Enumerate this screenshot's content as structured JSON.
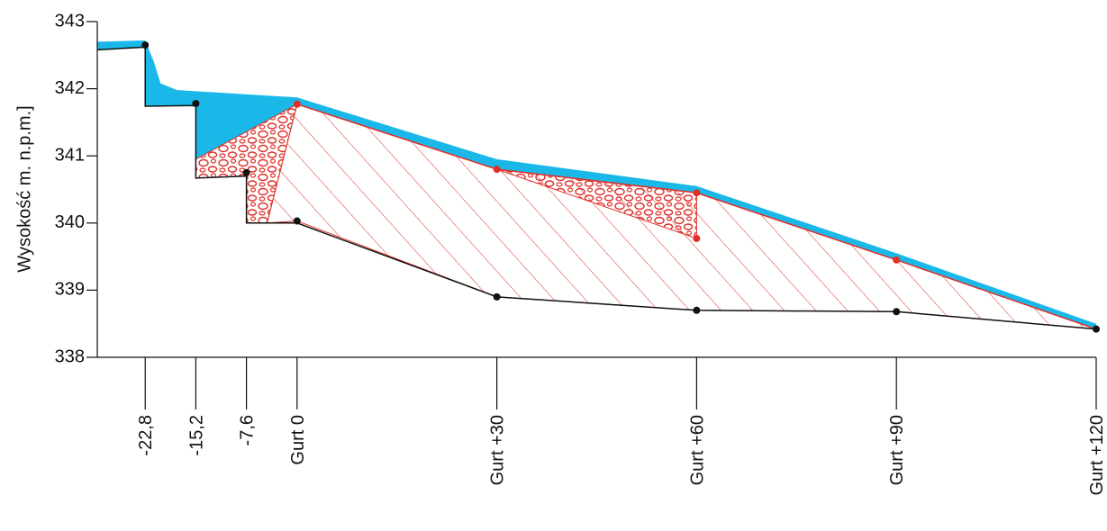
{
  "chart_data": {
    "type": "profile",
    "y_label": "Wysokość m. n.p.m.]",
    "xlim": [
      -30,
      120
    ],
    "ylim": [
      338,
      343
    ],
    "yticks": [
      338,
      339,
      340,
      341,
      342,
      343
    ],
    "xticks": [
      {
        "value": -22.8,
        "label": "-22,8"
      },
      {
        "value": -15.2,
        "label": "-15,2"
      },
      {
        "value": -7.6,
        "label": "-7,6"
      },
      {
        "value": 0,
        "label": "Gurt 0"
      },
      {
        "value": 30,
        "label": "Gurt +30"
      },
      {
        "value": 60,
        "label": "Gurt +60"
      },
      {
        "value": 90,
        "label": "Gurt +90"
      },
      {
        "value": 120,
        "label": "Gurt +120"
      }
    ],
    "water": {
      "color": "#1ab8e8",
      "x": [
        -30,
        -22.8,
        -21.5,
        -20.5,
        -18,
        0,
        30,
        60,
        90,
        120,
        120,
        90,
        60,
        30,
        0,
        -15.2,
        -15.2,
        -22.8,
        -22.8,
        -30
      ],
      "y": [
        342.7,
        342.72,
        342.4,
        342.08,
        341.98,
        341.87,
        340.95,
        340.55,
        339.55,
        338.5,
        338.42,
        339.45,
        340.45,
        340.8,
        341.77,
        340.95,
        341.75,
        341.74,
        342.62,
        342.58
      ]
    },
    "hatched": {
      "color": "#e0302a",
      "x": [
        0,
        30,
        60,
        90,
        120,
        90,
        60,
        30,
        0,
        -4.5
      ],
      "y": [
        341.77,
        340.8,
        340.45,
        339.45,
        338.42,
        338.68,
        338.7,
        338.9,
        340.03,
        340.0
      ]
    },
    "gravel": [
      {
        "color": "#e0302a",
        "x": [
          -15.2,
          0,
          -4.5,
          -7.6,
          -7.6,
          -15.2
        ],
        "y": [
          340.95,
          341.77,
          340.0,
          340.0,
          340.7,
          340.67
        ]
      },
      {
        "color": "#e0302a",
        "x": [
          30,
          60,
          60
        ],
        "y": [
          340.8,
          340.45,
          339.77
        ]
      }
    ],
    "bed": {
      "color": "#111111",
      "x": [
        -30,
        -22.8,
        -22.8,
        -15.2,
        -15.2,
        -7.6,
        -7.6,
        0,
        30,
        60,
        90,
        120
      ],
      "y": [
        342.58,
        342.62,
        341.74,
        341.75,
        340.67,
        340.7,
        340.0,
        340.0,
        338.9,
        338.7,
        338.68,
        338.42
      ]
    },
    "sediment_top": {
      "color": "#e0302a",
      "x": [
        0,
        30,
        60,
        90,
        120
      ],
      "y": [
        341.77,
        340.8,
        340.45,
        339.45,
        338.42
      ]
    },
    "markers_black": {
      "color": "#111111",
      "x": [
        -22.8,
        -15.2,
        -7.6,
        0,
        30,
        60,
        90,
        120
      ],
      "y": [
        342.65,
        341.78,
        340.75,
        340.03,
        338.9,
        338.7,
        338.68,
        338.42
      ]
    },
    "markers_red": {
      "color": "#e0302a",
      "x": [
        0,
        30,
        60,
        60,
        90
      ],
      "y": [
        341.77,
        340.8,
        340.45,
        339.77,
        339.45
      ]
    }
  }
}
